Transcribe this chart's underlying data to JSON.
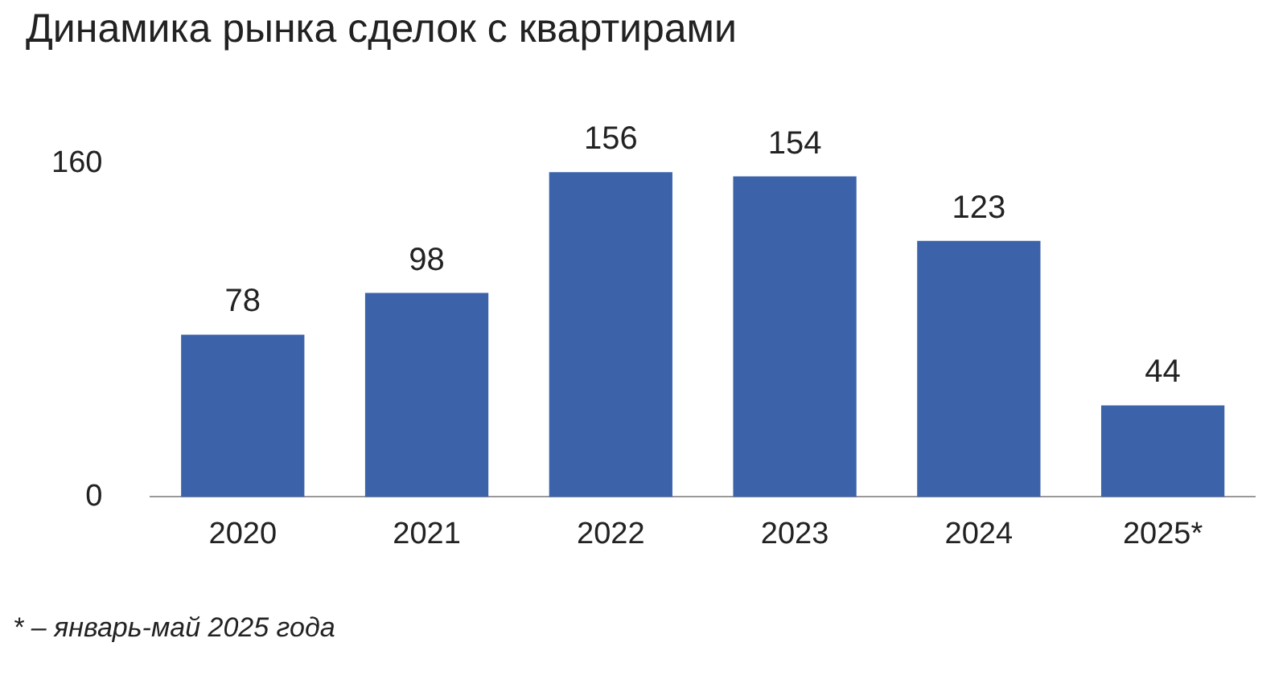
{
  "chart_data": {
    "type": "bar",
    "title": "Динамика рынка сделок с квартирами",
    "categories": [
      "2020",
      "2021",
      "2022",
      "2023",
      "2024",
      "2025*"
    ],
    "values": [
      78,
      98,
      156,
      154,
      123,
      44
    ],
    "color": "#3c62aa",
    "ylim": [
      0,
      160
    ],
    "yticks": [
      0,
      160
    ],
    "data_labels": true,
    "annotations": [
      "* – январь-май 2025 года"
    ]
  }
}
